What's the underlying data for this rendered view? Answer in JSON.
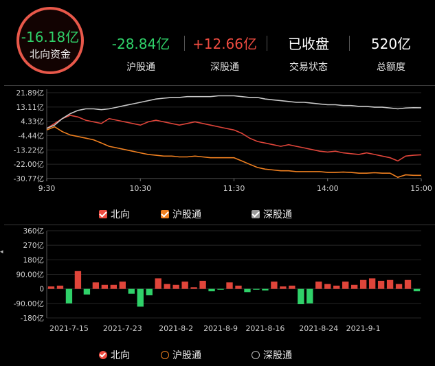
{
  "summary": {
    "north_value": "-16.18亿",
    "north_label": "北向资金",
    "stats": [
      {
        "value": "-28.84亿",
        "label": "沪股通",
        "color": "#2fd169"
      },
      {
        "value": "+12.66亿",
        "label": "深股通",
        "color": "#ee4b40"
      },
      {
        "value": "已收盘",
        "label": "交易状态",
        "color": "#ffffff"
      },
      {
        "value": "520亿",
        "label": "总额度",
        "color": "#ffffff"
      }
    ]
  },
  "legend_top": [
    {
      "label": "北向",
      "color": "#ee4b40"
    },
    {
      "label": "沪股通",
      "color": "#f08020"
    },
    {
      "label": "深股通",
      "color": "#9a9a9a"
    }
  ],
  "legend_bottom": [
    {
      "label": "北向",
      "color": "#ee4b40",
      "checked": true
    },
    {
      "label": "沪股通",
      "color": "#f08020",
      "checked": false
    },
    {
      "label": "深股通",
      "color": "#bbbbbb",
      "checked": false
    }
  ],
  "chart_data": [
    {
      "type": "line",
      "ytick_labels": [
        "21.89亿",
        "13.11亿",
        "4.33亿",
        "-4.44亿",
        "-13.22亿",
        "-22.00亿",
        "-30.77亿"
      ],
      "yticks": [
        21.89,
        13.11,
        4.33,
        -4.44,
        -13.22,
        -22.0,
        -30.77
      ],
      "ylim": [
        -30.77,
        21.89
      ],
      "xtick_labels": [
        "9:30",
        "10:30",
        "11:30",
        "14:00",
        "15:00"
      ],
      "xticks": [
        0,
        60,
        120,
        180,
        240
      ],
      "xlim": [
        0,
        240
      ],
      "series": [
        {
          "name": "北向",
          "color": "#e0453a",
          "x": [
            0,
            5,
            10,
            15,
            20,
            25,
            30,
            35,
            40,
            45,
            50,
            55,
            60,
            65,
            70,
            75,
            80,
            85,
            90,
            95,
            100,
            105,
            110,
            115,
            120,
            125,
            130,
            135,
            140,
            145,
            150,
            155,
            160,
            165,
            170,
            175,
            180,
            185,
            190,
            195,
            200,
            205,
            210,
            215,
            220,
            225,
            230,
            235,
            240
          ],
          "y": [
            0,
            3,
            6,
            8,
            7,
            5,
            4,
            3,
            6,
            5,
            4,
            3,
            2,
            4,
            5,
            4,
            3,
            2,
            3,
            4,
            3,
            2,
            1,
            0,
            -1,
            -3,
            -6,
            -8,
            -9,
            -10,
            -11,
            -10,
            -11,
            -12,
            -13,
            -14,
            -14.5,
            -14,
            -15,
            -15.5,
            -16,
            -15,
            -16,
            -17,
            -18,
            -20,
            -17,
            -16.5,
            -16.2
          ]
        },
        {
          "name": "沪股通",
          "color": "#f08020",
          "x": [
            0,
            5,
            10,
            15,
            20,
            25,
            30,
            35,
            40,
            45,
            50,
            55,
            60,
            65,
            70,
            75,
            80,
            85,
            90,
            95,
            100,
            105,
            110,
            115,
            120,
            125,
            130,
            135,
            140,
            145,
            150,
            155,
            160,
            165,
            170,
            175,
            180,
            185,
            190,
            195,
            200,
            205,
            210,
            215,
            220,
            225,
            230,
            235,
            240
          ],
          "y": [
            -1,
            1,
            -2,
            -4,
            -5,
            -6,
            -7,
            -9,
            -11,
            -12,
            -13,
            -14,
            -15,
            -16,
            -16.5,
            -17,
            -17,
            -17.5,
            -17.5,
            -17,
            -17.5,
            -18,
            -18,
            -18,
            -18,
            -20,
            -22,
            -24,
            -25,
            -25.5,
            -26,
            -26,
            -26.5,
            -26.5,
            -26.5,
            -26.5,
            -27,
            -27,
            -26.8,
            -27,
            -27.5,
            -27.5,
            -27.2,
            -27.5,
            -27.5,
            -30,
            -28.5,
            -28.8,
            -28.8
          ]
        },
        {
          "name": "深股通",
          "color": "#c8c8c8",
          "x": [
            0,
            5,
            10,
            15,
            20,
            25,
            30,
            35,
            40,
            45,
            50,
            55,
            60,
            65,
            70,
            75,
            80,
            85,
            90,
            95,
            100,
            105,
            110,
            115,
            120,
            125,
            130,
            135,
            140,
            145,
            150,
            155,
            160,
            165,
            170,
            175,
            180,
            185,
            190,
            195,
            200,
            205,
            210,
            215,
            220,
            225,
            230,
            235,
            240
          ],
          "y": [
            0,
            2,
            6,
            9,
            11,
            12,
            12,
            11.5,
            12,
            13,
            14,
            15,
            16,
            17,
            18,
            18.5,
            19,
            19,
            19.5,
            19.5,
            19.5,
            19.5,
            20,
            20,
            20,
            19.5,
            19,
            19,
            18,
            17.5,
            17,
            16.5,
            16,
            16,
            15.5,
            15,
            14.5,
            14.5,
            14,
            14,
            13.5,
            13.5,
            13,
            13,
            12.5,
            12,
            12.5,
            12.7,
            12.66
          ]
        }
      ]
    },
    {
      "type": "bar",
      "ytick_labels": [
        "360亿",
        "270亿",
        "180亿",
        "90.00亿",
        "0",
        "-90.00亿",
        "-180亿"
      ],
      "yticks": [
        360,
        270,
        180,
        90,
        0,
        -90,
        -180
      ],
      "ylim": [
        -180,
        360
      ],
      "xtick_labels": [
        "2021-7-15",
        "2021-7-23",
        "2021-8-2",
        "2021-8-9",
        "2021-8-16",
        "2021-8-24",
        "2021-9-1"
      ],
      "xtick_indices": [
        2,
        8,
        14,
        19,
        24,
        30,
        35
      ],
      "values": [
        15,
        20,
        -90,
        110,
        -35,
        40,
        25,
        25,
        45,
        -30,
        -110,
        -40,
        65,
        30,
        25,
        45,
        10,
        50,
        -15,
        -5,
        40,
        20,
        -20,
        -5,
        -10,
        45,
        15,
        20,
        -95,
        -90,
        45,
        30,
        20,
        45,
        25,
        55,
        65,
        50,
        55,
        30,
        55,
        -15
      ],
      "positive_color": "#e0453a",
      "negative_color": "#2fd169"
    }
  ]
}
